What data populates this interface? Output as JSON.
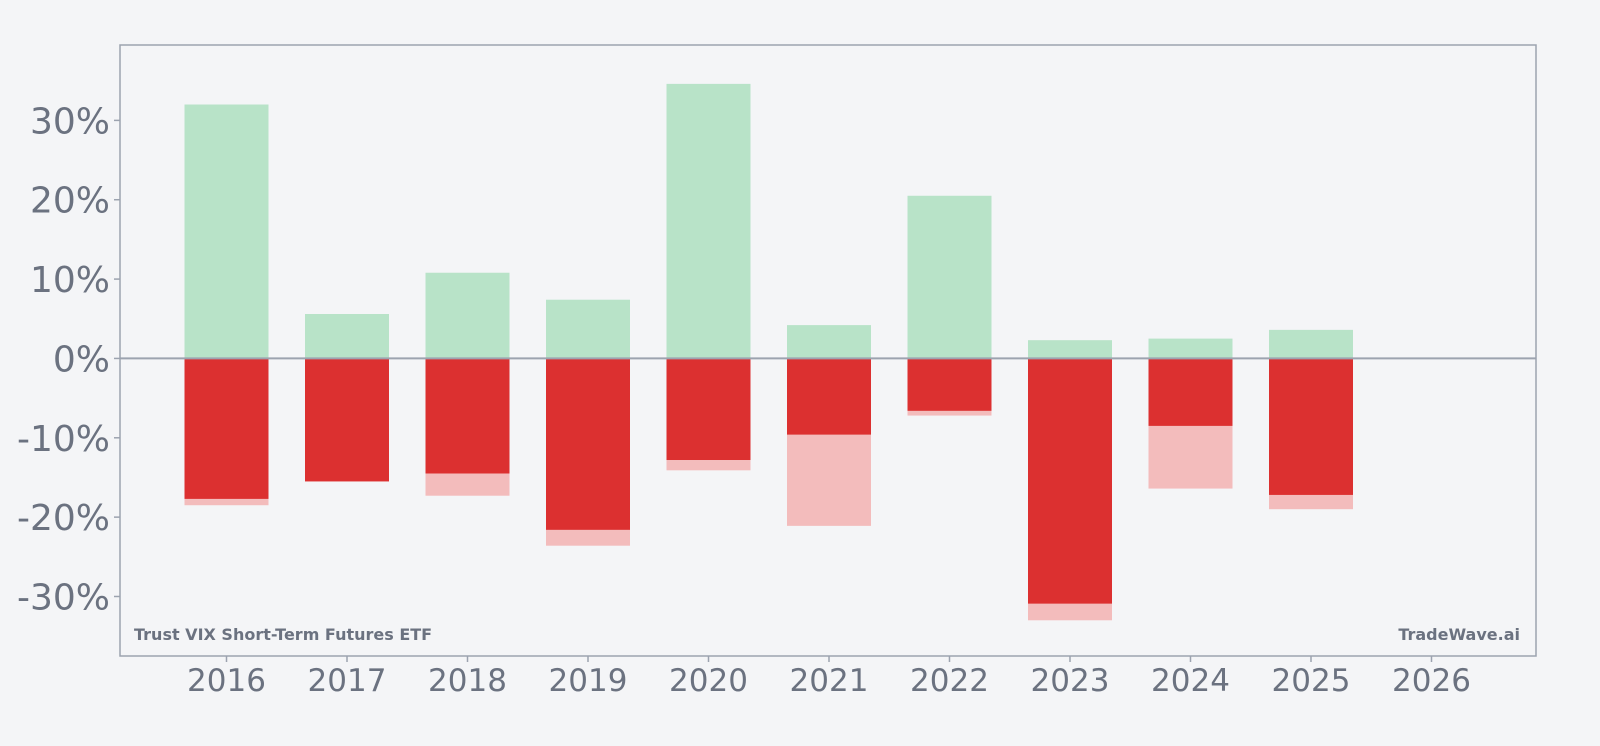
{
  "chart_data": {
    "type": "bar",
    "categories": [
      "2016",
      "2017",
      "2018",
      "2019",
      "2020",
      "2021",
      "2022",
      "2023",
      "2024",
      "2025",
      "2026"
    ],
    "series": [
      {
        "role": "max_gain",
        "values": [
          32.0,
          5.6,
          10.8,
          7.4,
          34.6,
          4.2,
          20.5,
          2.3,
          2.5,
          3.6,
          null
        ]
      },
      {
        "role": "max_drawdown",
        "values": [
          -18.5,
          -15.5,
          -17.3,
          -23.6,
          -14.1,
          -21.1,
          -7.2,
          -33.0,
          -16.4,
          -19.0,
          null
        ]
      },
      {
        "role": "year_return",
        "values": [
          -17.7,
          -15.5,
          -14.5,
          -21.6,
          -12.8,
          -9.6,
          -6.6,
          -30.9,
          -8.5,
          -17.2,
          null
        ]
      }
    ],
    "ylim": [
      -37.5,
      39.5
    ],
    "yticks": [
      30,
      20,
      10,
      0,
      -10,
      -20,
      -30
    ],
    "ytick_labels": [
      "30%",
      "20%",
      "10%",
      "0%",
      "-10%",
      "-20%",
      "-30%"
    ],
    "grid": false,
    "zero_line": true,
    "colors": {
      "max_gain": "#b8e3c8",
      "max_drawdown": "#f3bcbc",
      "year_return_negative": "#dc3030",
      "year_return_positive": "#16a34a",
      "axis": "#9ca3af",
      "text": "#6b7280",
      "background": "#f4f5f7"
    }
  },
  "footer": {
    "fund_name": "Trust VIX Short-Term Futures ETF",
    "brand": "TradeWave.ai"
  }
}
